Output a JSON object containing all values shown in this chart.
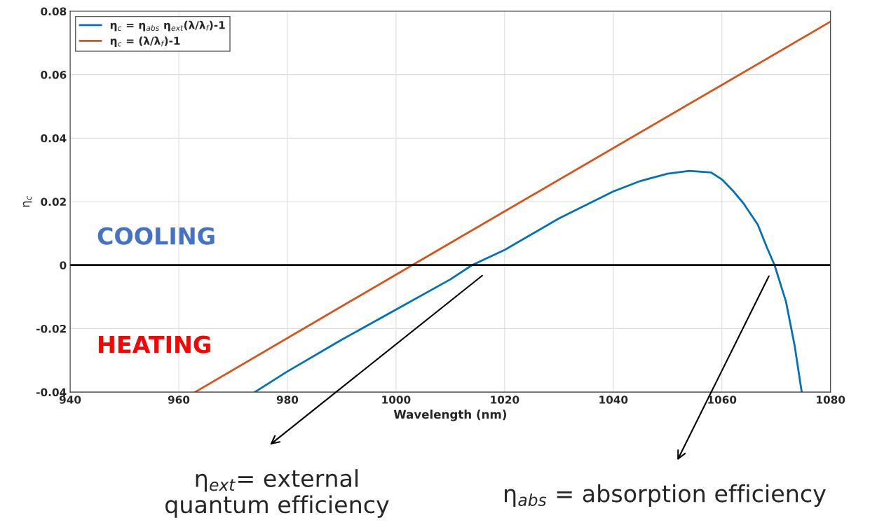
{
  "chart_data": {
    "type": "line",
    "xlabel": "Wavelength (nm)",
    "ylabel": "η$_{c}$",
    "series": [
      {
        "name": "η$_{c}$ = η$_{abs}$ η$_{ext}$(λ/λ$_{f}$)-1",
        "color": "#0072bd",
        "x": [
          974,
          980,
          990,
          1000,
          1010,
          1014,
          1020,
          1030,
          1040,
          1045,
          1050,
          1054,
          1058,
          1060,
          1062,
          1064,
          1066.6,
          1068.3,
          1069.7,
          1071.8,
          1073.4,
          1074.7
        ],
        "values": [
          -0.04,
          -0.0335,
          -0.0235,
          -0.014,
          -0.0045,
          0.0,
          0.0048,
          0.0147,
          0.0232,
          0.0265,
          0.0288,
          0.0297,
          0.0292,
          0.027,
          0.0235,
          0.0194,
          0.0128,
          0.0055,
          0.0,
          -0.0115,
          -0.0254,
          -0.04
        ]
      },
      {
        "name": "η$_{c}$ = (λ/λ$_{f}$)-1",
        "color": "#d95319",
        "x": [
          963,
          1003,
          1080
        ],
        "values": [
          -0.04,
          0.0,
          0.0767
        ]
      }
    ],
    "xlim": [
      940,
      1080
    ],
    "ylim": [
      -0.04,
      0.08
    ],
    "xticks": [
      940,
      960,
      980,
      1000,
      1020,
      1040,
      1060,
      1080
    ],
    "yticks": [
      -0.04,
      -0.02,
      0,
      0.02,
      0.04,
      0.06,
      0.08
    ],
    "ref_lines": [
      {
        "axis": "y",
        "value": 0,
        "color": "#000000"
      }
    ],
    "grid": true,
    "legend": "top left",
    "annotations": [
      "COOLING",
      "HEATING",
      "η$_{ext}$= external\nquantum efficiency",
      "η$_{abs}$ = absorption efficiency"
    ]
  }
}
